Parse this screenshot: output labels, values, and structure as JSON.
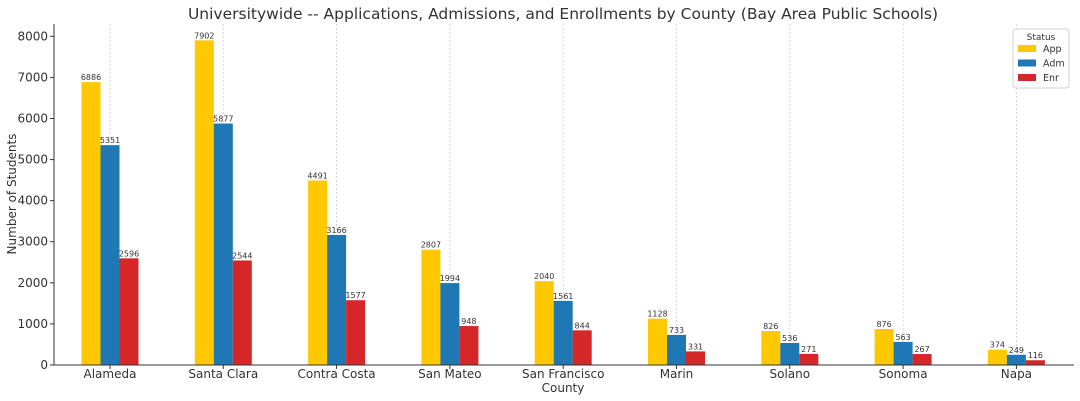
{
  "chart_data": {
    "type": "bar",
    "title": "Universitywide -- Applications, Admissions, and Enrollments by County (Bay Area Public Schools)",
    "xlabel": "County",
    "ylabel": "Number of Students",
    "categories": [
      "Alameda",
      "Santa Clara",
      "Contra Costa",
      "San Mateo",
      "San Francisco",
      "Marin",
      "Solano",
      "Sonoma",
      "Napa"
    ],
    "series": [
      {
        "name": "App",
        "color": "#FFC800",
        "values": [
          6886,
          7902,
          4491,
          2807,
          2040,
          1128,
          826,
          876,
          374
        ]
      },
      {
        "name": "Adm",
        "color": "#1F77B4",
        "values": [
          5351,
          5877,
          3166,
          1994,
          1561,
          733,
          536,
          563,
          249
        ]
      },
      {
        "name": "Enr",
        "color": "#D62728",
        "values": [
          2596,
          2544,
          1577,
          948,
          844,
          331,
          271,
          267,
          116
        ]
      }
    ],
    "ylim": [
      0,
      8300
    ],
    "yticks": [
      0,
      1000,
      2000,
      3000,
      4000,
      5000,
      6000,
      7000,
      8000
    ],
    "grid": "vertical dashed lines at category centers",
    "legend": {
      "title": "Status",
      "placement": "top-right"
    }
  }
}
